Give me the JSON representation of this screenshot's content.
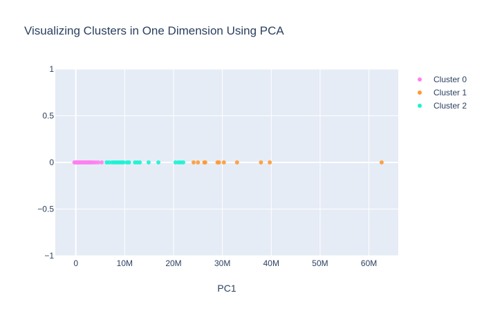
{
  "chart_data": {
    "type": "scatter",
    "title": "Visualizing Clusters in One Dimension Using PCA",
    "xlabel": "PC1",
    "ylabel": "",
    "xlim": [
      -4200000,
      66000000
    ],
    "ylim": [
      -1,
      1
    ],
    "x_ticks": [
      {
        "value": 0,
        "label": "0"
      },
      {
        "value": 10000000,
        "label": "10M"
      },
      {
        "value": 20000000,
        "label": "20M"
      },
      {
        "value": 30000000,
        "label": "30M"
      },
      {
        "value": 40000000,
        "label": "40M"
      },
      {
        "value": 50000000,
        "label": "50M"
      },
      {
        "value": 60000000,
        "label": "60M"
      }
    ],
    "y_ticks": [
      {
        "value": 1,
        "label": "1"
      },
      {
        "value": 0.5,
        "label": "0.5"
      },
      {
        "value": 0,
        "label": "0"
      },
      {
        "value": -0.5,
        "label": "−0.5"
      },
      {
        "value": -1,
        "label": "−1"
      }
    ],
    "grid": true,
    "legend_position": "top-right",
    "series": [
      {
        "name": "Cluster 0",
        "color": "#ff7ff0",
        "x": [
          -300000,
          -100000,
          0,
          150000,
          300000,
          450000,
          600000,
          800000,
          1000000,
          1200000,
          1400000,
          1600000,
          1800000,
          2000000,
          2200000,
          2400000,
          2600000,
          2800000,
          3000000,
          3300000,
          3700000,
          4100000,
          4600000,
          5300000
        ],
        "y": [
          0,
          0,
          0,
          0,
          0,
          0,
          0,
          0,
          0,
          0,
          0,
          0,
          0,
          0,
          0,
          0,
          0,
          0,
          0,
          0,
          0,
          0,
          0,
          0
        ]
      },
      {
        "name": "Cluster 1",
        "color": "#ff9933",
        "x": [
          24100000,
          25000000,
          26300000,
          26500000,
          29000000,
          29300000,
          30300000,
          33000000,
          37900000,
          39700000,
          62600000
        ],
        "y": [
          0,
          0,
          0,
          0,
          0,
          0,
          0,
          0,
          0,
          0,
          0
        ]
      },
      {
        "name": "Cluster 2",
        "color": "#1af2d4",
        "x": [
          6300000,
          6800000,
          7400000,
          7800000,
          8200000,
          8600000,
          9000000,
          9400000,
          9800000,
          10500000,
          10900000,
          12100000,
          12600000,
          13100000,
          14900000,
          16900000,
          20400000,
          21000000,
          21500000,
          22000000
        ],
        "y": [
          0,
          0,
          0,
          0,
          0,
          0,
          0,
          0,
          0,
          0,
          0,
          0,
          0,
          0,
          0,
          0,
          0,
          0,
          0,
          0
        ]
      }
    ]
  }
}
